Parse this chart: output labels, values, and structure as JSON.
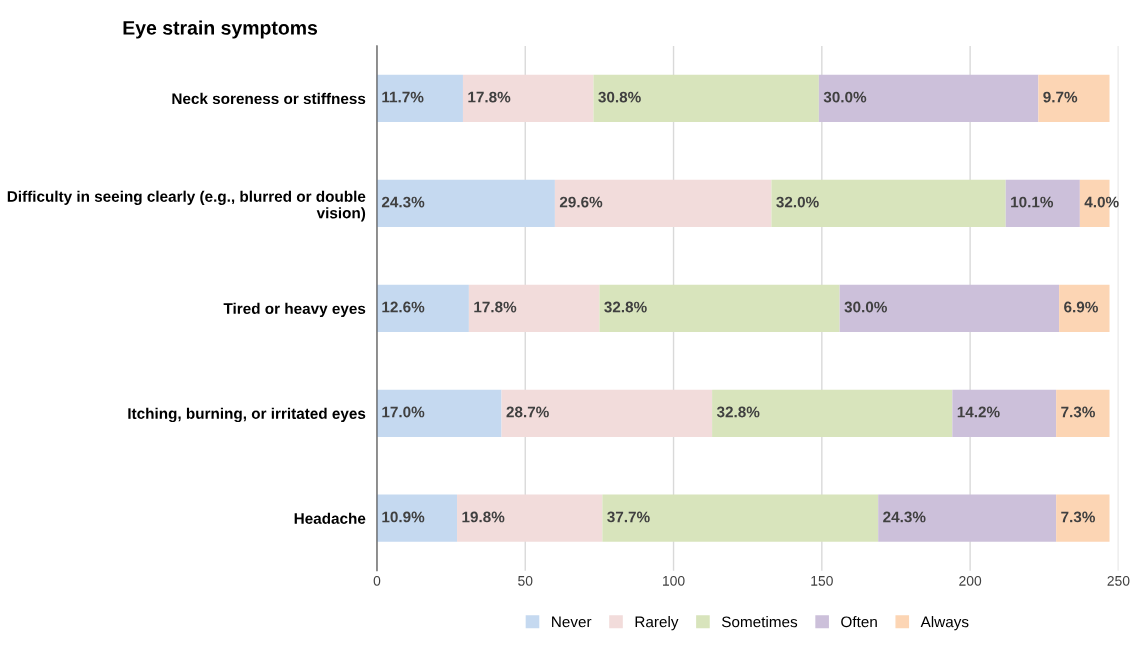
{
  "chart_data": {
    "type": "bar",
    "orientation": "horizontal",
    "stacked": true,
    "title": "Eye strain symptoms",
    "categories": [
      "Neck soreness or stiffness",
      "Difficulty in seeing clearly (e.g., blurred or double\nvision)",
      "Tired or heavy eyes",
      "Itching, burning, or irritated eyes",
      "Headache"
    ],
    "series": [
      {
        "name": "Never",
        "color": "#c5d9f0",
        "values": [
          29,
          60,
          31,
          42,
          27
        ]
      },
      {
        "name": "Rarely",
        "color": "#f2dcdb",
        "values": [
          44,
          73,
          44,
          71,
          49
        ]
      },
      {
        "name": "Sometimes",
        "color": "#d8e4bc",
        "values": [
          76,
          79,
          81,
          81,
          93
        ]
      },
      {
        "name": "Often",
        "color": "#ccc0da",
        "values": [
          74,
          25,
          74,
          35,
          60
        ]
      },
      {
        "name": "Always",
        "color": "#fcd5b4",
        "values": [
          24,
          10,
          17,
          18,
          18
        ]
      }
    ],
    "annotations": [
      {
        "text": "11.7%",
        "x": 0,
        "y": "Neck soreness or stiffness"
      },
      {
        "text": "17.8%",
        "x": 29,
        "y": "Neck soreness or stiffness"
      },
      {
        "text": "30.8%",
        "x": 73,
        "y": "Neck soreness or stiffness"
      },
      {
        "text": "30.0%",
        "x": 149,
        "y": "Neck soreness or stiffness"
      },
      {
        "text": "9.7%",
        "x": 223,
        "y": "Neck soreness or stiffness"
      },
      {
        "text": "24.3%",
        "x": 0,
        "y": "Difficulty in seeing clearly (e.g., blurred or double\nvision)"
      },
      {
        "text": "29.6%",
        "x": 60,
        "y": "Difficulty in seeing clearly (e.g., blurred or double\nvision)"
      },
      {
        "text": "32.0%",
        "x": 133,
        "y": "Difficulty in seeing clearly (e.g., blurred or double\nvision)"
      },
      {
        "text": "10.1%",
        "x": 212,
        "y": "Difficulty in seeing clearly (e.g., blurred or double\nvision)"
      },
      {
        "text": "4.0%",
        "x": 237,
        "y": "Difficulty in seeing clearly (e.g., blurred or double\nvision)"
      },
      {
        "text": "12.6%",
        "x": 0,
        "y": "Tired or heavy eyes"
      },
      {
        "text": "17.8%",
        "x": 31,
        "y": "Tired or heavy eyes"
      },
      {
        "text": "32.8%",
        "x": 75,
        "y": "Tired or heavy eyes"
      },
      {
        "text": "30.0%",
        "x": 156,
        "y": "Tired or heavy eyes"
      },
      {
        "text": "6.9%",
        "x": 230,
        "y": "Tired or heavy eyes"
      },
      {
        "text": "17.0%",
        "x": 0,
        "y": "Itching, burning, or irritated eyes"
      },
      {
        "text": "28.7%",
        "x": 42,
        "y": "Itching, burning, or irritated eyes"
      },
      {
        "text": "32.8%",
        "x": 113,
        "y": "Itching, burning, or irritated eyes"
      },
      {
        "text": "14.2%",
        "x": 194,
        "y": "Itching, burning, or irritated eyes"
      },
      {
        "text": "7.3%",
        "x": 229,
        "y": "Itching, burning, or irritated eyes"
      },
      {
        "text": "10.9%",
        "x": 0,
        "y": "Headache"
      },
      {
        "text": "19.8%",
        "x": 27,
        "y": "Headache"
      },
      {
        "text": "37.7%",
        "x": 76,
        "y": "Headache"
      },
      {
        "text": "24.3%",
        "x": 169,
        "y": "Headache"
      },
      {
        "text": "7.3%",
        "x": 229,
        "y": "Headache"
      }
    ],
    "xlim": [
      0,
      250
    ],
    "xticks": [
      0,
      50,
      100,
      150,
      200,
      250
    ],
    "grid": "x",
    "legend": "bottom"
  }
}
